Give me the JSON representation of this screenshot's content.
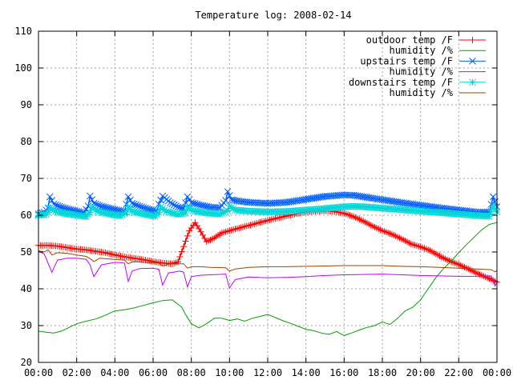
{
  "chart_data": {
    "type": "line",
    "title": "Temperature log: 2008-02-14",
    "xlabel": "",
    "ylabel": "",
    "xlim": [
      0,
      24
    ],
    "ylim": [
      20,
      110
    ],
    "grid": true,
    "legend_position": "top-right",
    "x_ticks": [
      "00:00",
      "02:00",
      "04:00",
      "06:00",
      "08:00",
      "10:00",
      "12:00",
      "14:00",
      "16:00",
      "18:00",
      "20:00",
      "22:00",
      "00:00"
    ],
    "y_ticks": [
      "20",
      "30",
      "40",
      "50",
      "60",
      "70",
      "80",
      "90",
      "100",
      "110"
    ],
    "series": [
      {
        "name": "outdoor temp /F",
        "color": "#ff0000",
        "marker": "plus",
        "x": [
          0,
          0.5,
          1,
          1.5,
          2,
          2.5,
          3,
          3.5,
          4,
          4.5,
          5,
          5.5,
          6,
          6.5,
          7,
          7.3,
          7.6,
          7.9,
          8.2,
          8.5,
          8.8,
          9.2,
          9.6,
          10,
          10.5,
          11,
          11.5,
          12,
          12.5,
          13,
          13.5,
          14,
          14.5,
          15,
          15.5,
          16,
          16.5,
          17,
          17.5,
          18,
          18.5,
          19,
          19.5,
          20,
          20.5,
          21,
          21.5,
          22,
          22.5,
          23,
          23.5,
          24
        ],
        "y": [
          51.8,
          51.8,
          51.6,
          51.2,
          50.8,
          50.6,
          50.2,
          49.8,
          49.2,
          48.7,
          48.3,
          47.9,
          47.4,
          47.0,
          46.8,
          47.3,
          51.5,
          55.8,
          58.0,
          55.5,
          52.8,
          53.8,
          55.2,
          55.8,
          56.5,
          57.2,
          57.9,
          58.6,
          59.2,
          59.8,
          60.4,
          60.9,
          61.1,
          61.2,
          61.0,
          60.5,
          59.6,
          58.4,
          57.0,
          55.8,
          54.8,
          53.6,
          52.2,
          51.4,
          50.4,
          48.9,
          47.6,
          46.6,
          45.4,
          44.1,
          43.0,
          41.8
        ]
      },
      {
        "name": "humidity /%",
        "color": "#00a000",
        "marker": "none",
        "x": [
          0,
          0.4,
          0.8,
          1.2,
          1.6,
          2.0,
          2.5,
          3.0,
          3.5,
          4.0,
          4.5,
          5.0,
          5.5,
          6.0,
          6.5,
          7.0,
          7.5,
          7.7,
          8.0,
          8.4,
          8.8,
          9.2,
          9.6,
          10.0,
          10.4,
          10.8,
          11.2,
          11.6,
          12.0,
          12.4,
          12.8,
          13.2,
          13.6,
          14.0,
          14.4,
          14.8,
          15.2,
          15.6,
          16.0,
          16.4,
          16.8,
          17.2,
          17.6,
          18.0,
          18.4,
          18.8,
          19.2,
          19.6,
          20.0,
          20.4,
          20.8,
          21.2,
          21.6,
          22.0,
          22.4,
          22.8,
          23.2,
          23.6,
          24.0
        ],
        "y": [
          28.5,
          28.2,
          28.0,
          28.5,
          29.5,
          30.5,
          31.2,
          31.8,
          32.8,
          34.0,
          34.3,
          34.8,
          35.5,
          36.2,
          36.8,
          37.0,
          35.0,
          33.0,
          30.5,
          29.4,
          30.5,
          32.0,
          32.0,
          31.4,
          31.8,
          31.2,
          32.0,
          32.5,
          33.0,
          32.2,
          31.3,
          30.6,
          29.8,
          29.0,
          28.6,
          28.0,
          27.6,
          28.4,
          27.3,
          28.0,
          28.8,
          29.5,
          30.0,
          31.0,
          30.3,
          32.0,
          34.0,
          35.0,
          37.0,
          40.0,
          43.0,
          45.5,
          47.5,
          49.8,
          52.0,
          54.0,
          56.0,
          57.5,
          58.0
        ]
      },
      {
        "name": "upstairs temp /F",
        "color": "#0060ff",
        "marker": "cross",
        "x": [
          0,
          0.3,
          0.5,
          0.6,
          0.8,
          1.2,
          1.6,
          2.0,
          2.4,
          2.6,
          2.7,
          2.9,
          3.3,
          3.8,
          4.2,
          4.5,
          4.7,
          4.9,
          5.3,
          5.8,
          6.2,
          6.3,
          6.5,
          6.9,
          7.3,
          7.6,
          7.8,
          8.0,
          8.5,
          9.0,
          9.5,
          9.8,
          9.9,
          10.1,
          10.5,
          11,
          12,
          13,
          14,
          15,
          16,
          16.5,
          17,
          18,
          19,
          20,
          21,
          22,
          23,
          23.6,
          23.8,
          24
        ],
        "y": [
          60.3,
          60.8,
          62.0,
          65.0,
          63.0,
          62.2,
          61.6,
          61.1,
          60.6,
          62.5,
          65.2,
          63.2,
          62.4,
          61.8,
          61.3,
          61.0,
          65.0,
          63.2,
          62.4,
          61.6,
          61.1,
          63.0,
          65.2,
          63.4,
          62.2,
          61.8,
          65.0,
          63.4,
          62.7,
          62.2,
          62.0,
          64.0,
          66.4,
          64.2,
          63.8,
          63.5,
          63.2,
          63.5,
          64.3,
          65.1,
          65.5,
          65.4,
          65.0,
          64.2,
          63.4,
          62.7,
          62.0,
          61.4,
          60.8,
          60.9,
          65.0,
          62.3
        ]
      },
      {
        "name": "humidity /%",
        "color": "#c000ff",
        "marker": "none",
        "x": [
          0,
          0.3,
          0.5,
          0.7,
          1.0,
          1.5,
          2.0,
          2.5,
          2.7,
          2.9,
          3.3,
          4.0,
          4.5,
          4.7,
          4.9,
          5.3,
          6.0,
          6.3,
          6.5,
          6.8,
          7.4,
          7.6,
          7.8,
          8.0,
          8.5,
          9.0,
          9.8,
          10.0,
          10.3,
          11,
          12,
          13,
          14,
          15,
          16,
          17,
          18,
          19,
          20,
          21,
          22,
          23,
          23.7,
          23.9,
          24
        ],
        "y": [
          50.2,
          49.5,
          47.0,
          44.5,
          47.8,
          48.3,
          48.3,
          48.0,
          46.5,
          43.3,
          46.5,
          47.2,
          47.0,
          42.0,
          44.8,
          45.5,
          45.6,
          45.3,
          41.0,
          44.3,
          44.8,
          44.5,
          40.5,
          43.3,
          43.7,
          43.8,
          44.0,
          40.2,
          42.5,
          43.2,
          43.0,
          43.1,
          43.3,
          43.6,
          43.8,
          43.9,
          44.0,
          43.8,
          43.6,
          43.5,
          43.4,
          43.4,
          43.5,
          40.8,
          41.5
        ]
      },
      {
        "name": "downstairs temp /F",
        "color": "#00d8d8",
        "marker": "star",
        "x": [
          0,
          0.4,
          0.5,
          0.6,
          0.9,
          1.4,
          2.0,
          2.5,
          2.7,
          2.8,
          3.1,
          3.7,
          4.3,
          4.6,
          4.7,
          4.9,
          5.5,
          6.1,
          6.3,
          6.4,
          6.7,
          7.3,
          7.7,
          7.8,
          8.1,
          8.8,
          9.5,
          9.9,
          10.0,
          10.3,
          11,
          12,
          13,
          14,
          15,
          16,
          16.5,
          17,
          18,
          19,
          20,
          21,
          22,
          23,
          23.6,
          23.8,
          24
        ],
        "y": [
          60.0,
          60.2,
          60.8,
          62.0,
          61.0,
          60.4,
          60.0,
          59.6,
          60.8,
          62.2,
          61.0,
          60.3,
          59.8,
          60.8,
          62.3,
          61.0,
          60.3,
          59.7,
          60.8,
          62.2,
          61.0,
          60.2,
          60.6,
          62.2,
          61.2,
          60.6,
          60.3,
          61.2,
          62.5,
          61.4,
          61.1,
          60.9,
          61.0,
          61.4,
          61.8,
          62.3,
          62.4,
          62.3,
          61.9,
          61.5,
          61.1,
          60.7,
          60.3,
          59.9,
          59.7,
          62.5,
          60.9
        ]
      },
      {
        "name": "humidity /%",
        "color": "#a04000",
        "marker": "none",
        "x": [
          0,
          0.3,
          0.5,
          0.7,
          1.0,
          1.5,
          2.0,
          2.5,
          2.7,
          2.9,
          3.2,
          4.0,
          4.5,
          4.7,
          4.9,
          5.3,
          6.0,
          6.3,
          6.5,
          6.8,
          7.2,
          7.6,
          7.8,
          8.0,
          8.5,
          9.0,
          9.8,
          10.0,
          10.3,
          11,
          12,
          13,
          14,
          15,
          16,
          17,
          18,
          19,
          20,
          21,
          22,
          23,
          23.7,
          23.9,
          24
        ],
        "y": [
          50.3,
          50.0,
          50.6,
          49.2,
          49.8,
          49.6,
          49.2,
          48.8,
          48.2,
          47.4,
          48.3,
          48.0,
          47.8,
          46.8,
          47.3,
          47.3,
          47.0,
          47.0,
          46.2,
          46.7,
          46.8,
          46.8,
          45.6,
          46.0,
          46.0,
          45.8,
          45.7,
          44.8,
          45.4,
          45.8,
          46.0,
          46.0,
          46.1,
          46.2,
          46.3,
          46.3,
          46.3,
          46.1,
          46.0,
          45.8,
          45.6,
          45.4,
          45.2,
          44.6,
          45.0
        ]
      }
    ]
  }
}
